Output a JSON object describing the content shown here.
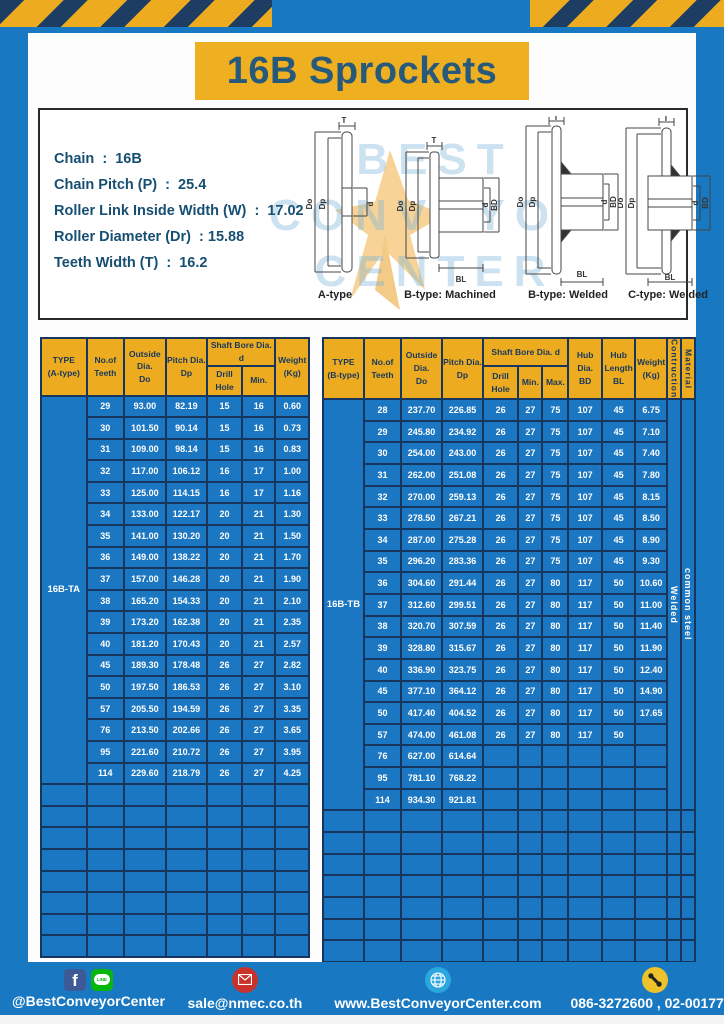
{
  "page": {
    "title": "16B Sprockets"
  },
  "colors": {
    "frame_blue": "#1878c1",
    "table_blue": "#1c77c2",
    "navy": "#16365d",
    "accent_yellow": "#edac1f",
    "title_teal": "#27597a"
  },
  "specs": {
    "lines": [
      "Chain  :  16B",
      "Chain Pitch (P)  :  25.4",
      "Roller Link Inside Width (W)  :  17.02",
      "Roller Diameter (Dr)  : 15.88",
      "Teeth Width (T)  :  16.2"
    ]
  },
  "drawings": {
    "labels": [
      "A-type",
      "B-type: Machined",
      "B-type: Welded",
      "C-type: Welded"
    ],
    "dims": {
      "t": "T",
      "do": "Do",
      "dp": "Dp",
      "d": "d",
      "bd": "BD",
      "bl": "BL"
    },
    "watermark": [
      "BEST",
      "CONVEYOR",
      "CENTER"
    ]
  },
  "tables": [
    {
      "name": "A-type sprocket table",
      "type_label": "16B-TA",
      "columns": 7,
      "empty_rows": 8,
      "header": {
        "type": "TYPE\n(A-type)",
        "teeth": "No.of\nTeeth",
        "outside": "Outside\nDia.\nDo",
        "pitch": "Pitch Dia.\nDp",
        "shaft": "Shaft Bore Dia. d",
        "drill": "Drill Hole",
        "min": "Min.",
        "weight": "Weight\n(Kg)"
      },
      "rows": [
        [
          "29",
          "93.00",
          "82.19",
          "15",
          "16",
          "0.60"
        ],
        [
          "30",
          "101.50",
          "90.14",
          "15",
          "16",
          "0.73"
        ],
        [
          "31",
          "109.00",
          "98.14",
          "15",
          "16",
          "0.83"
        ],
        [
          "32",
          "117.00",
          "106.12",
          "16",
          "17",
          "1.00"
        ],
        [
          "33",
          "125.00",
          "114.15",
          "16",
          "17",
          "1.16"
        ],
        [
          "34",
          "133.00",
          "122.17",
          "20",
          "21",
          "1.30"
        ],
        [
          "35",
          "141.00",
          "130.20",
          "20",
          "21",
          "1.50"
        ],
        [
          "36",
          "149.00",
          "138.22",
          "20",
          "21",
          "1.70"
        ],
        [
          "37",
          "157.00",
          "146.28",
          "20",
          "21",
          "1.90"
        ],
        [
          "38",
          "165.20",
          "154.33",
          "20",
          "21",
          "2.10"
        ],
        [
          "39",
          "173.20",
          "162.38",
          "20",
          "21",
          "2.35"
        ],
        [
          "40",
          "181.20",
          "170.43",
          "20",
          "21",
          "2.57"
        ],
        [
          "45",
          "189.30",
          "178.48",
          "26",
          "27",
          "2.82"
        ],
        [
          "50",
          "197.50",
          "186.53",
          "26",
          "27",
          "3.10"
        ],
        [
          "57",
          "205.50",
          "194.59",
          "26",
          "27",
          "3.35"
        ],
        [
          "76",
          "213.50",
          "202.66",
          "26",
          "27",
          "3.65"
        ],
        [
          "95",
          "221.60",
          "210.72",
          "26",
          "27",
          "3.95"
        ],
        [
          "114",
          "229.60",
          "218.79",
          "26",
          "27",
          "4.25"
        ]
      ]
    },
    {
      "name": "B-type sprocket table",
      "type_label": "16B-TB",
      "columns": 12,
      "empty_rows": 7,
      "header": {
        "type": "TYPE\n(B-type)",
        "teeth": "No.of\nTeeth",
        "outside": "Outside\nDia.\nDo",
        "pitch": "Pitch Dia.\nDp",
        "shaft": "Shaft Bore Dia. d",
        "drill": "Drill Hole",
        "min": "Min.",
        "max": "Max.",
        "hub_dia": "Hub Dia.\nBD",
        "hub_len": "Hub\nLength\nBL",
        "weight": "Weight\n(Kg)",
        "construction": "Contruction",
        "material": "Material"
      },
      "merged_tail": [
        "Welded",
        "common steel"
      ],
      "merged_tail_names": [
        "construction-value",
        "material-value"
      ],
      "rows": [
        [
          "28",
          "237.70",
          "226.85",
          "26",
          "27",
          "75",
          "107",
          "45",
          "6.75"
        ],
        [
          "29",
          "245.80",
          "234.92",
          "26",
          "27",
          "75",
          "107",
          "45",
          "7.10"
        ],
        [
          "30",
          "254.00",
          "243.00",
          "26",
          "27",
          "75",
          "107",
          "45",
          "7.40"
        ],
        [
          "31",
          "262.00",
          "251.08",
          "26",
          "27",
          "75",
          "107",
          "45",
          "7.80"
        ],
        [
          "32",
          "270.00",
          "259.13",
          "26",
          "27",
          "75",
          "107",
          "45",
          "8.15"
        ],
        [
          "33",
          "278.50",
          "267.21",
          "26",
          "27",
          "75",
          "107",
          "45",
          "8.50"
        ],
        [
          "34",
          "287.00",
          "275.28",
          "26",
          "27",
          "75",
          "107",
          "45",
          "8.90"
        ],
        [
          "35",
          "296.20",
          "283.36",
          "26",
          "27",
          "75",
          "107",
          "45",
          "9.30"
        ],
        [
          "36",
          "304.60",
          "291.44",
          "26",
          "27",
          "80",
          "117",
          "50",
          "10.60"
        ],
        [
          "37",
          "312.60",
          "299.51",
          "26",
          "27",
          "80",
          "117",
          "50",
          "11.00"
        ],
        [
          "38",
          "320.70",
          "307.59",
          "26",
          "27",
          "80",
          "117",
          "50",
          "11.40"
        ],
        [
          "39",
          "328.80",
          "315.67",
          "26",
          "27",
          "80",
          "117",
          "50",
          "11.90"
        ],
        [
          "40",
          "336.90",
          "323.75",
          "26",
          "27",
          "80",
          "117",
          "50",
          "12.40"
        ],
        [
          "45",
          "377.10",
          "364.12",
          "26",
          "27",
          "80",
          "117",
          "50",
          "14.90"
        ],
        [
          "50",
          "417.40",
          "404.52",
          "26",
          "27",
          "80",
          "117",
          "50",
          "17.65"
        ],
        [
          "57",
          "474.00",
          "461.08",
          "26",
          "27",
          "80",
          "117",
          "50",
          ""
        ],
        [
          "76",
          "627.00",
          "614.64",
          "",
          "",
          "",
          "",
          "",
          ""
        ],
        [
          "95",
          "781.10",
          "768.22",
          "",
          "",
          "",
          "",
          "",
          ""
        ],
        [
          "114",
          "934.30",
          "921.81",
          "",
          "",
          "",
          "",
          "",
          ""
        ]
      ]
    }
  ],
  "footer": {
    "social_handle": "@BestConveyorCenter",
    "line_label": "LINE",
    "facebook_letter": "f",
    "email": "sale@nmec.co.th",
    "website": "www.BestConveyorCenter.com",
    "phones": "086-3272600 , 02-0017766"
  }
}
